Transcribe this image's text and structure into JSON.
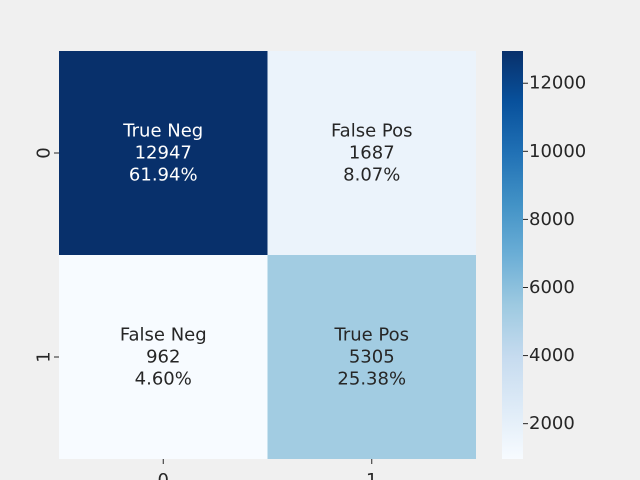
{
  "chart_data": {
    "type": "heatmap",
    "title": "",
    "xlabel": "",
    "ylabel": "",
    "x_tick_labels": [
      "0",
      "1"
    ],
    "y_tick_labels": [
      "0",
      "1"
    ],
    "cells": [
      [
        {
          "label": "True Neg",
          "count": "12947",
          "percent": "61.94%",
          "value": 12947
        },
        {
          "label": "False Pos",
          "count": "1687",
          "percent": "8.07%",
          "value": 1687
        }
      ],
      [
        {
          "label": "False Neg",
          "count": "962",
          "percent": "4.60%",
          "value": 962
        },
        {
          "label": "True Pos",
          "count": "5305",
          "percent": "25.38%",
          "value": 5305
        }
      ]
    ],
    "colorbar": {
      "vmin": 962,
      "vmax": 12947,
      "ticks": [
        2000,
        4000,
        6000,
        8000,
        10000,
        12000
      ],
      "tick_labels": [
        "2000",
        "4000",
        "6000",
        "8000",
        "10000",
        "12000"
      ],
      "colormap": "Blues"
    },
    "colors": {
      "background": "#f0f0f0",
      "text_light": "#ffffff",
      "text_dark": "#262626"
    }
  }
}
